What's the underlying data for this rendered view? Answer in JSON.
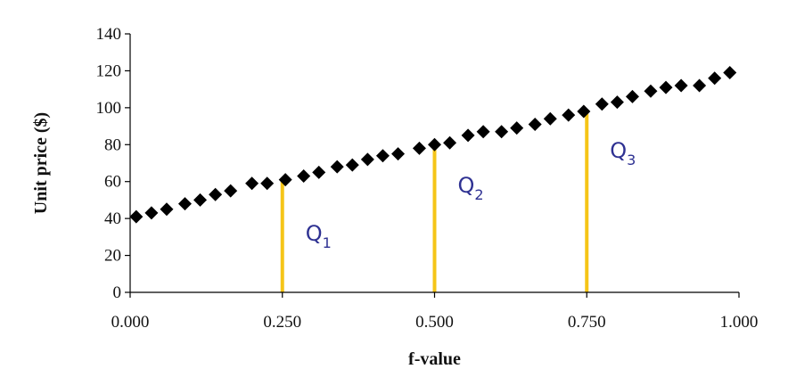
{
  "chart_data": {
    "type": "scatter",
    "title": "",
    "xlabel": "f-value",
    "ylabel": "Unit price ($)",
    "xlim": [
      0,
      1
    ],
    "ylim": [
      0,
      140
    ],
    "x_ticks": [
      0,
      0.25,
      0.5,
      0.75,
      1.0
    ],
    "x_tick_labels": [
      "0.000",
      "0.250",
      "0.500",
      "0.750",
      "1.000"
    ],
    "y_ticks": [
      0,
      20,
      40,
      60,
      80,
      100,
      120,
      140
    ],
    "y_tick_labels": [
      "0",
      "20",
      "40",
      "60",
      "80",
      "100",
      "120",
      "140"
    ],
    "grid": false,
    "marker": "diamond",
    "colors": {
      "points": "#000000",
      "quartile_lines": "#f5c518",
      "quartile_labels": "#2e3192"
    },
    "series": [
      {
        "x": [
          0.01,
          0.035,
          0.06,
          0.09,
          0.115,
          0.14,
          0.165,
          0.2,
          0.225,
          0.255,
          0.285,
          0.31,
          0.34,
          0.365,
          0.39,
          0.415,
          0.44,
          0.475,
          0.5,
          0.525,
          0.555,
          0.58,
          0.61,
          0.635,
          0.665,
          0.69,
          0.72,
          0.745,
          0.775,
          0.8,
          0.825,
          0.855,
          0.88,
          0.905,
          0.935,
          0.96,
          0.985
        ],
        "y": [
          41,
          43,
          45,
          48,
          50,
          53,
          55,
          59,
          59,
          61,
          63,
          65,
          68,
          69,
          72,
          74,
          75,
          78,
          80,
          81,
          85,
          87,
          87,
          89,
          91,
          94,
          96,
          98,
          102,
          103,
          106,
          109,
          111,
          112,
          112,
          116,
          119
        ]
      }
    ],
    "quartiles": [
      {
        "label": "Q",
        "sub": "1",
        "x": 0.25,
        "y": 61
      },
      {
        "label": "Q",
        "sub": "2",
        "x": 0.5,
        "y": 80
      },
      {
        "label": "Q",
        "sub": "3",
        "x": 0.75,
        "y": 99
      }
    ]
  }
}
